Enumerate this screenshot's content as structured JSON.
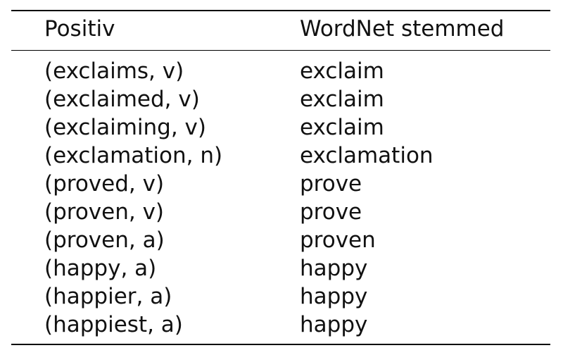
{
  "table": {
    "headers": [
      "Positiv",
      "WordNet stemmed"
    ],
    "rows": [
      [
        "(exclaims, v)",
        "exclaim"
      ],
      [
        "(exclaimed, v)",
        "exclaim"
      ],
      [
        "(exclaiming, v)",
        "exclaim"
      ],
      [
        "(exclamation, n)",
        "exclamation"
      ],
      [
        "(proved, v)",
        "prove"
      ],
      [
        "(proven, v)",
        "prove"
      ],
      [
        "(proven, a)",
        "proven"
      ],
      [
        "(happy, a)",
        "happy"
      ],
      [
        "(happier, a)",
        "happy"
      ],
      [
        "(happiest, a)",
        "happy"
      ]
    ]
  }
}
